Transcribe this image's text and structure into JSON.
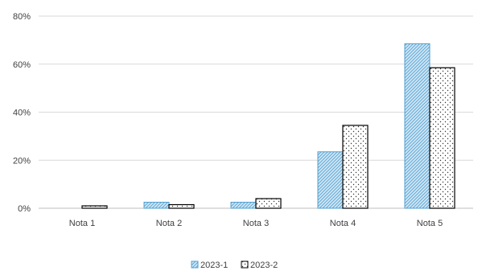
{
  "chart_data": {
    "type": "bar",
    "categories": [
      "Nota 1",
      "Nota 2",
      "Nota 3",
      "Nota 4",
      "Nota 5"
    ],
    "series": [
      {
        "name": "2023-1",
        "values": [
          0,
          2.5,
          2.5,
          23.5,
          68.5
        ],
        "color": "#4f9fd0",
        "pattern": "diagonal-hatch"
      },
      {
        "name": "2023-2",
        "values": [
          1,
          1.5,
          4,
          34.5,
          58.5
        ],
        "color": "#000000",
        "pattern": "dots"
      }
    ],
    "yticks": [
      "0%",
      "20%",
      "40%",
      "60%",
      "80%"
    ],
    "ylim": [
      0,
      80
    ],
    "grid": true,
    "legend_position": "bottom"
  }
}
